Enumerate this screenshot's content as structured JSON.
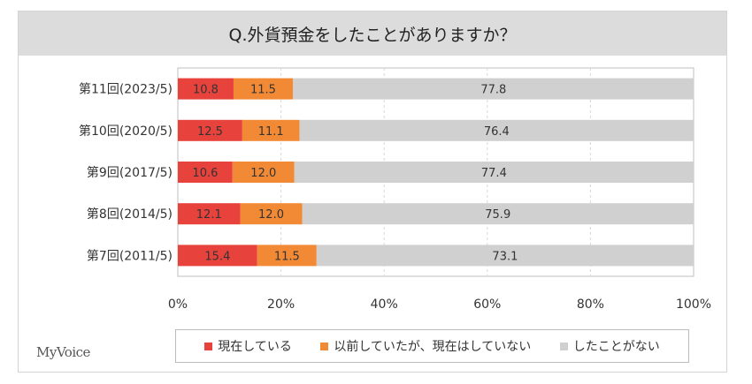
{
  "chart_data": {
    "type": "bar",
    "orientation": "horizontal",
    "stacked": true,
    "title": "Q.外貨預金をしたことがありますか？",
    "categories": [
      "第11回(2023/5)",
      "第10回(2020/5)",
      "第9回(2017/5)",
      "第8回(2014/5)",
      "第7回(2011/5)"
    ],
    "series": [
      {
        "name": "現在している",
        "values": [
          10.8,
          12.5,
          10.6,
          12.1,
          15.4
        ],
        "color": "#e8423c"
      },
      {
        "name": "以前していたが、現在はしていない",
        "values": [
          11.5,
          11.1,
          12.0,
          12.0,
          11.5
        ],
        "color": "#f28a35"
      },
      {
        "name": "したことがない",
        "values": [
          77.8,
          76.4,
          77.4,
          75.9,
          73.1
        ],
        "color": "#d0d0d0"
      }
    ],
    "xlim": [
      0,
      100
    ],
    "x_ticks": [
      "0%",
      "20%",
      "40%",
      "60%",
      "80%",
      "100%"
    ],
    "grid": true,
    "legend_position": "bottom"
  },
  "brand": "MyVoice",
  "colors": {
    "label_dark": "#333333",
    "grid": "#d8d8d8"
  }
}
